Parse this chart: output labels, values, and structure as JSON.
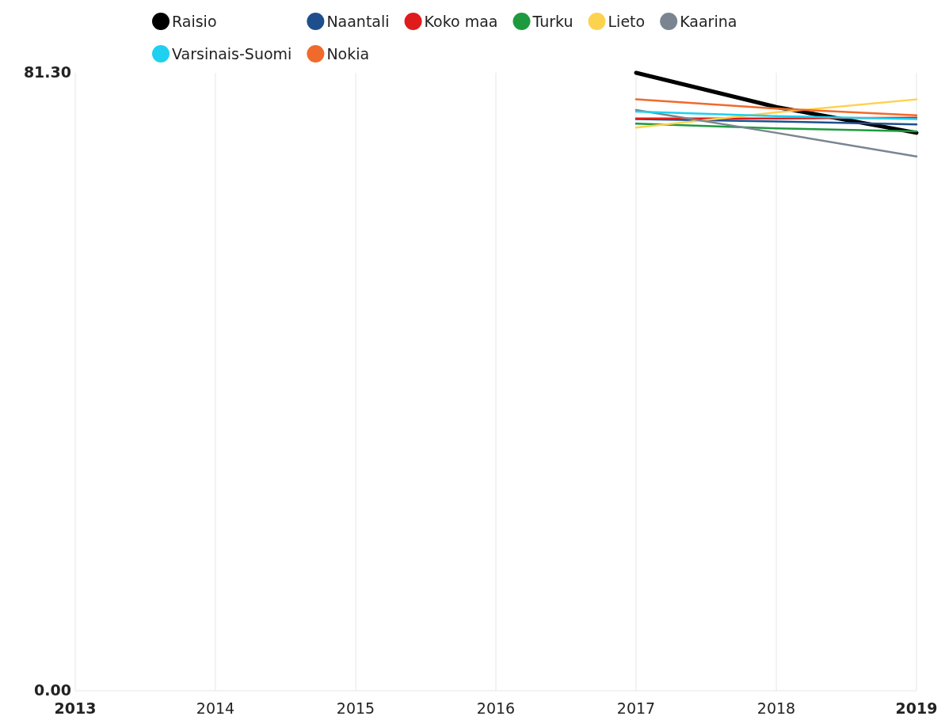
{
  "chart_data": {
    "type": "line",
    "x": [
      2017,
      2018,
      2019
    ],
    "xlim": [
      2013,
      2019
    ],
    "xticks": [
      {
        "value": 2013,
        "label": "2013"
      },
      {
        "value": 2014,
        "label": "2014"
      },
      {
        "value": 2015,
        "label": "2015"
      },
      {
        "value": 2016,
        "label": "2016"
      },
      {
        "value": 2017,
        "label": "2017"
      },
      {
        "value": 2018,
        "label": "2018"
      },
      {
        "value": 2019,
        "label": "2019"
      }
    ],
    "ylim": [
      0,
      81.3
    ],
    "yticks": [
      {
        "value": 0,
        "label": "0.00"
      },
      {
        "value": 81.3,
        "label": "81.30"
      }
    ],
    "grid": "x",
    "legend": "top",
    "marker": "none",
    "line_style": "solid",
    "series": [
      {
        "name": "Raisio",
        "color": "#000000",
        "values": [
          81.3,
          76.8,
          73.4
        ]
      },
      {
        "name": "Naantali",
        "color": "#1f4e8c",
        "values": [
          75.2,
          74.9,
          74.5
        ]
      },
      {
        "name": "Koko maa",
        "color": "#e01b1b",
        "values": [
          75.3,
          75.3,
          75.4
        ]
      },
      {
        "name": "Turku",
        "color": "#1e9a3e",
        "values": [
          74.6,
          74.0,
          73.6
        ]
      },
      {
        "name": "Lieto",
        "color": "#fdd24e",
        "values": [
          74.1,
          76.1,
          77.8
        ]
      },
      {
        "name": "Kaarina",
        "color": "#7a8591",
        "values": [
          76.4,
          73.4,
          70.3
        ]
      },
      {
        "name": "Varsinais-Suomi",
        "color": "#1fd0f0",
        "values": [
          76.2,
          75.6,
          75.2
        ]
      },
      {
        "name": "Nokia",
        "color": "#f06a2c",
        "values": [
          77.8,
          76.6,
          75.7
        ]
      }
    ]
  }
}
